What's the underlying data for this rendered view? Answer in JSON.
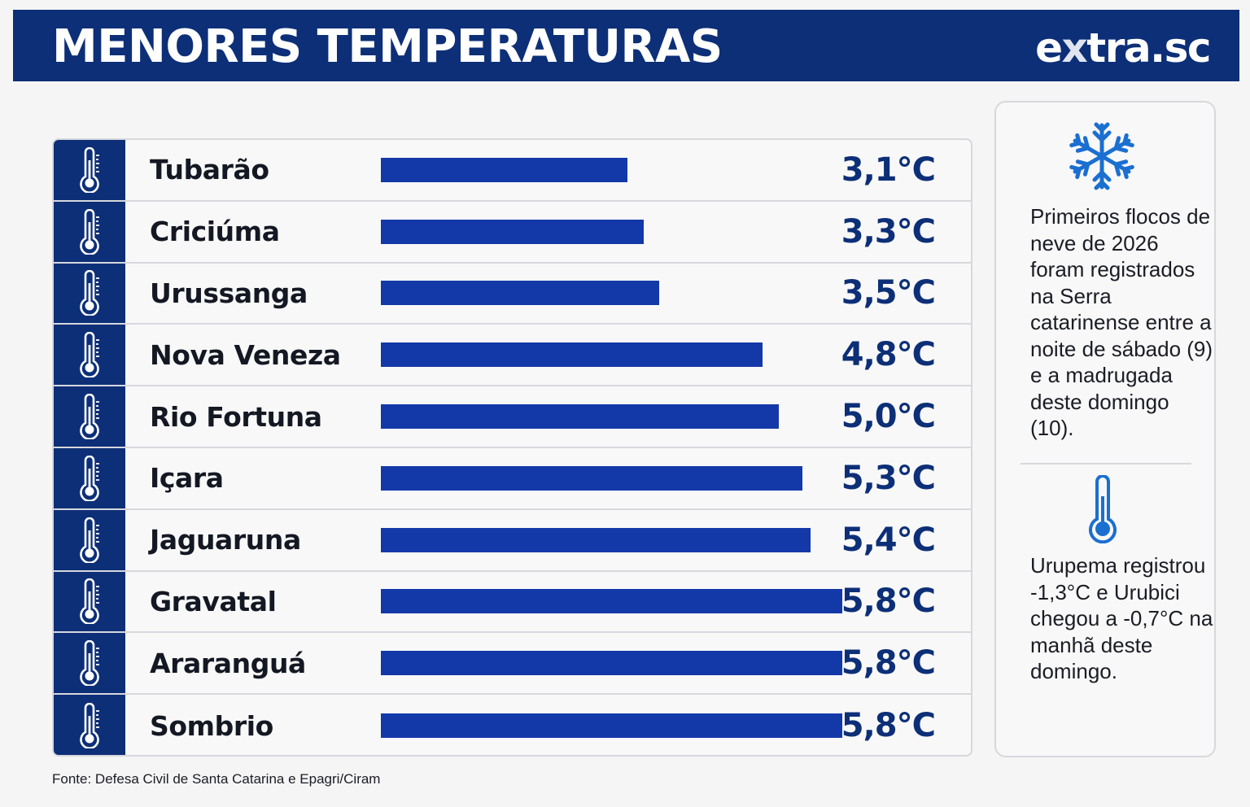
{
  "header": {
    "title": "MENORES TEMPERATURAS",
    "logo": "extra.sc"
  },
  "chart_data": {
    "type": "bar",
    "title": "MENORES TEMPERATURAS",
    "orientation": "horizontal",
    "categories": [
      "Tubarão",
      "Criciúma",
      "Urussanga",
      "Nova Veneza",
      "Rio Fortuna",
      "Içara",
      "Jaguaruna",
      "Gravatal",
      "Araranguá",
      "Sombrio"
    ],
    "values": [
      3.1,
      3.3,
      3.5,
      4.8,
      5.0,
      5.3,
      5.4,
      5.8,
      5.8,
      5.8
    ],
    "labels": [
      "3,1°C",
      "3,3°C",
      "3,5°C",
      "4,8°C",
      "5,0°C",
      "5,3°C",
      "5,4°C",
      "5,8°C",
      "5,8°C",
      "5,8°C"
    ],
    "bar_color": "#1338a8",
    "icon": "thermometer-icon"
  },
  "sidebar": {
    "note1": "Primeiros flocos de neve de 2026 foram registrados na Serra catarinense entre a noite de sábado (9) e a madrugada deste domingo (10).",
    "note2": "Urupema registrou -1,3°C e Urubici chegou a -0,7°C na manhã deste domingo.",
    "icon_top": "snowflake-icon",
    "icon_bottom": "thermometer-icon"
  },
  "source": "Fonte: Defesa Civil de Santa Catarina e Epagri/Ciram",
  "colors": {
    "navy": "#0d2f78",
    "bar": "#1338a8",
    "accent": "#1a6fd0"
  }
}
